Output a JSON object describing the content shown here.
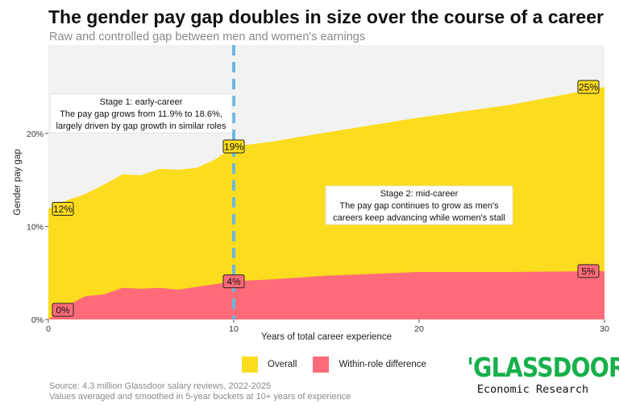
{
  "header": {
    "title": "The gender pay gap doubles in size over the course of a career",
    "subtitle": "Raw and controlled gap between men and women's earnings"
  },
  "chart_data": {
    "type": "area",
    "xlabel": "Years of total career experience",
    "ylabel": "Gender pay gap",
    "xlim": [
      0,
      30
    ],
    "ylim": [
      0,
      29.5
    ],
    "x_ticks": [
      0,
      10,
      20,
      30
    ],
    "x_tick_labels": [
      "0",
      "10",
      "20",
      "30"
    ],
    "y_ticks": [
      0,
      10,
      20
    ],
    "y_tick_labels": [
      "0%",
      "10%",
      "20%"
    ],
    "grid": false,
    "series": [
      {
        "name": "Overall",
        "color": "#fcdc1e",
        "x": [
          0,
          1,
          2,
          3,
          4,
          5,
          6,
          7,
          8,
          9,
          10,
          12,
          15,
          20,
          25,
          30
        ],
        "values": [
          11.9,
          12.8,
          13.5,
          14.5,
          15.6,
          15.5,
          16.2,
          16.1,
          16.3,
          17.2,
          18.6,
          19.1,
          20.1,
          21.7,
          23.1,
          25.0
        ]
      },
      {
        "name": "Within-role difference",
        "color": "#ff6b78",
        "x": [
          0,
          1,
          2,
          3,
          4,
          5,
          6,
          7,
          8,
          9,
          10,
          12,
          15,
          20,
          25,
          30
        ],
        "values": [
          0.0,
          1.5,
          2.5,
          2.7,
          3.4,
          3.3,
          3.4,
          3.2,
          3.5,
          3.8,
          4.1,
          4.3,
          4.7,
          5.1,
          5.1,
          5.2
        ]
      }
    ],
    "data_labels": [
      {
        "series": "Overall",
        "x": 0,
        "y": 11.9,
        "text": "12%"
      },
      {
        "series": "Overall",
        "x": 10,
        "y": 18.6,
        "text": "19%"
      },
      {
        "series": "Overall",
        "x": 30,
        "y": 25.0,
        "text": "25%"
      },
      {
        "series": "Within-role difference",
        "x": 0,
        "y": 0.0,
        "text": "0%"
      },
      {
        "series": "Within-role difference",
        "x": 10,
        "y": 4.1,
        "text": "4%"
      },
      {
        "series": "Within-role difference",
        "x": 30,
        "y": 5.2,
        "text": "5%"
      }
    ],
    "reference_line": {
      "x": 10,
      "color": "#6bb8e0",
      "style": "dashed"
    },
    "annotations": [
      {
        "lines": [
          "Stage 1: early-career",
          "The pay gap grows from 11.9% to 18.6%,",
          "largely driven by gap growth in similar roles"
        ]
      },
      {
        "lines": [
          "Stage 2: mid-career",
          "The pay gap continues to grow as men's",
          "careers keep advancing while women's stall"
        ]
      }
    ]
  },
  "legend": {
    "items": [
      {
        "label": "Overall",
        "color": "#fcdc1e"
      },
      {
        "label": "Within-role difference",
        "color": "#ff6b78"
      }
    ]
  },
  "footer": {
    "source_line1": "Source: 4.3 million Glassdoor salary reviews, 2022-2025",
    "source_line2": "Values averaged and smoothed in 5-year buckets at 10+ years of experience"
  },
  "logo": {
    "wordmark": "'GLASSDOOR'",
    "tagline": "Economic Research",
    "color": "#17b04b"
  }
}
